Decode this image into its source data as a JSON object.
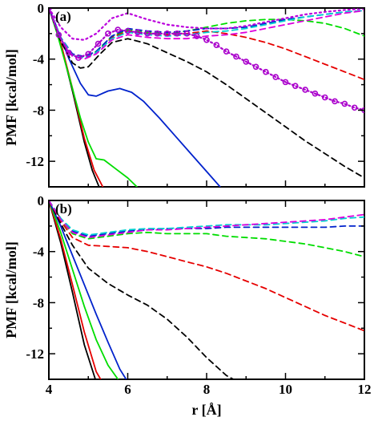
{
  "chart_data": [
    {
      "type": "line",
      "panel_label": "(a)",
      "xlim": [
        4,
        12
      ],
      "ylim": [
        -14,
        0
      ],
      "xticks": [
        4,
        6,
        8,
        10,
        12
      ],
      "xtick_labels": [
        "",
        "",
        "",
        "",
        ""
      ],
      "yticks": [
        0,
        -4,
        -8,
        -12
      ],
      "ytick_labels": [
        "0",
        "-4",
        "-8",
        "-12"
      ],
      "ylabel": "PMF [kcal/mol]",
      "xlabel": "",
      "series": [
        {
          "color": "#000000",
          "dash": "",
          "x": [
            4.0,
            4.3,
            4.6,
            4.9,
            5.1,
            5.3
          ],
          "y": [
            0,
            -2.8,
            -6.5,
            -10.5,
            -12.7,
            -14.2
          ]
        },
        {
          "color": "#e60000",
          "dash": "",
          "x": [
            4.0,
            4.3,
            4.6,
            4.9,
            5.15,
            5.4
          ],
          "y": [
            0,
            -2.7,
            -6.3,
            -10.2,
            -12.7,
            -14.2
          ]
        },
        {
          "color": "#00dd00",
          "dash": "",
          "x": [
            4.0,
            4.2,
            4.5,
            4.8,
            5.0,
            5.2,
            5.4,
            5.7,
            6.0,
            6.3
          ],
          "y": [
            0,
            -1.9,
            -5.2,
            -8.6,
            -10.5,
            -11.8,
            -11.9,
            -12.6,
            -13.3,
            -14.2
          ]
        },
        {
          "color": "#0022cc",
          "dash": "",
          "x": [
            4.0,
            4.2,
            4.5,
            4.8,
            5.0,
            5.2,
            5.5,
            5.8,
            6.1,
            6.4,
            6.8,
            7.2,
            7.6,
            8.0,
            8.4
          ],
          "y": [
            0,
            -1.5,
            -3.9,
            -5.9,
            -6.8,
            -6.9,
            -6.5,
            -6.3,
            -6.6,
            -7.3,
            -8.6,
            -10.0,
            -11.4,
            -12.8,
            -14.2
          ]
        },
        {
          "color": "#000000",
          "dash": "7,5",
          "x": [
            4.0,
            4.3,
            4.6,
            4.8,
            5.0,
            5.3,
            5.6,
            6.0,
            6.5,
            7.0,
            7.5,
            8.0,
            8.5,
            9.0,
            9.5,
            10.0,
            10.5,
            11.0,
            11.5,
            12.0
          ],
          "y": [
            0,
            -2.6,
            -4.3,
            -4.7,
            -4.6,
            -3.6,
            -2.7,
            -2.4,
            -2.8,
            -3.5,
            -4.2,
            -5.0,
            -6.0,
            -7.1,
            -8.2,
            -9.3,
            -10.4,
            -11.4,
            -12.4,
            -13.3
          ]
        },
        {
          "color": "#e60000",
          "dash": "7,5",
          "x": [
            4.0,
            4.3,
            4.6,
            4.9,
            5.2,
            5.6,
            6.0,
            6.5,
            7.0,
            7.5,
            8.0,
            8.5,
            9.0,
            9.5,
            10.0,
            10.5,
            11.0,
            11.5,
            12.0
          ],
          "y": [
            0,
            -2.3,
            -3.7,
            -3.9,
            -3.5,
            -2.3,
            -1.8,
            -2.0,
            -2.1,
            -2.0,
            -1.8,
            -2.0,
            -2.3,
            -2.7,
            -3.2,
            -3.8,
            -4.4,
            -5.0,
            -5.6
          ]
        },
        {
          "color": "#00dd00",
          "dash": "7,5",
          "x": [
            4.0,
            4.3,
            4.6,
            4.9,
            5.2,
            5.6,
            6.0,
            6.5,
            7.0,
            7.5,
            8.0,
            8.5,
            9.0,
            9.5,
            10.0,
            10.5,
            11.0,
            11.5,
            12.0
          ],
          "y": [
            0,
            -2.3,
            -3.7,
            -3.8,
            -3.4,
            -2.2,
            -1.7,
            -1.9,
            -2.0,
            -1.8,
            -1.5,
            -1.2,
            -1.0,
            -0.9,
            -0.9,
            -1.0,
            -1.2,
            -1.6,
            -2.2
          ]
        },
        {
          "color": "#0022cc",
          "dash": "7,5",
          "x": [
            4.0,
            4.3,
            4.6,
            4.9,
            5.2,
            5.6,
            6.0,
            6.5,
            7.0,
            7.5,
            8.0,
            8.5,
            9.0,
            9.5,
            10.0,
            10.5,
            11.0,
            11.5,
            12.0
          ],
          "y": [
            0,
            -2.3,
            -3.6,
            -3.8,
            -3.4,
            -2.2,
            -1.6,
            -1.8,
            -1.9,
            -1.8,
            -1.6,
            -1.6,
            -1.5,
            -1.2,
            -0.9,
            -0.7,
            -0.5,
            -0.3,
            -0.2
          ]
        },
        {
          "color": "#00d0d0",
          "dash": "7,5",
          "x": [
            4.0,
            4.3,
            4.6,
            4.9,
            5.2,
            5.6,
            6.0,
            6.5,
            7.0,
            7.5,
            8.0,
            8.5,
            9.0,
            9.5,
            10.0,
            10.5,
            11.0,
            11.5,
            12.0
          ],
          "y": [
            0,
            -2.3,
            -3.7,
            -3.9,
            -3.5,
            -2.4,
            -1.9,
            -2.1,
            -2.2,
            -2.1,
            -1.9,
            -1.8,
            -1.6,
            -1.3,
            -1.0,
            -0.7,
            -0.5,
            -0.3,
            -0.2
          ]
        },
        {
          "color": "#dd00dd",
          "dash": "7,5",
          "x": [
            4.0,
            4.3,
            4.6,
            4.9,
            5.2,
            5.6,
            6.0,
            6.5,
            7.0,
            7.5,
            8.0,
            8.5,
            9.0,
            9.5,
            10.0,
            10.5,
            11.0,
            11.5,
            12.0
          ],
          "y": [
            0,
            -2.4,
            -3.8,
            -4.0,
            -3.6,
            -2.5,
            -2.1,
            -2.3,
            -2.4,
            -2.4,
            -2.2,
            -2.1,
            -1.9,
            -1.6,
            -1.3,
            -1.0,
            -0.7,
            -0.4,
            -0.2
          ]
        },
        {
          "color": "#bb00dd",
          "dash": "2,4",
          "x": [
            4.0,
            4.3,
            4.6,
            4.9,
            5.2,
            5.6,
            6.0,
            6.5,
            7.0,
            7.5,
            8.0,
            8.5,
            9.0,
            9.5,
            10.0,
            10.5,
            11.0,
            11.5,
            12.0
          ],
          "y": [
            0,
            -1.5,
            -2.4,
            -2.5,
            -2.0,
            -0.8,
            -0.4,
            -0.9,
            -1.3,
            -1.5,
            -1.6,
            -1.6,
            -1.4,
            -1.1,
            -0.8,
            -0.5,
            -0.3,
            -0.15,
            -0.05
          ]
        },
        {
          "color": "#aa00cc",
          "dash": "2,3",
          "marker": "circle",
          "x": [
            4.0,
            4.25,
            4.5,
            4.75,
            5.0,
            5.25,
            5.5,
            5.75,
            6.0,
            6.25,
            6.5,
            6.75,
            7.0,
            7.25,
            7.5,
            7.75,
            8.0,
            8.25,
            8.5,
            8.75,
            9.0,
            9.25,
            9.5,
            9.75,
            10.0,
            10.25,
            10.5,
            10.75,
            11.0,
            11.25,
            11.5,
            11.75,
            12.0
          ],
          "y": [
            0,
            -2.1,
            -3.5,
            -3.9,
            -3.6,
            -2.8,
            -2.0,
            -1.7,
            -1.8,
            -1.9,
            -2.0,
            -2.0,
            -2.0,
            -2.0,
            -2.0,
            -2.2,
            -2.5,
            -2.9,
            -3.4,
            -3.8,
            -4.2,
            -4.6,
            -5.0,
            -5.4,
            -5.8,
            -6.1,
            -6.4,
            -6.7,
            -7.0,
            -7.3,
            -7.5,
            -7.8,
            -8.0
          ]
        }
      ]
    },
    {
      "type": "line",
      "panel_label": "(b)",
      "xlim": [
        4,
        12
      ],
      "ylim": [
        -14,
        0
      ],
      "xticks": [
        4,
        6,
        8,
        10,
        12
      ],
      "xtick_labels": [
        "4",
        "6",
        "8",
        "10",
        "12"
      ],
      "yticks": [
        0,
        -4,
        -8,
        -12
      ],
      "ytick_labels": [
        "0",
        "-4",
        "-8",
        "-12"
      ],
      "ylabel": "PMF [kcal/mol]",
      "xlabel": "r  [Å]",
      "series": [
        {
          "color": "#000000",
          "dash": "",
          "x": [
            4.0,
            4.3,
            4.6,
            4.9,
            5.2
          ],
          "y": [
            0,
            -3.3,
            -7.2,
            -11.3,
            -14.2
          ]
        },
        {
          "color": "#e60000",
          "dash": "",
          "x": [
            4.0,
            4.3,
            4.6,
            4.9,
            5.2,
            5.35
          ],
          "y": [
            0,
            -3.0,
            -6.6,
            -10.3,
            -13.4,
            -14.2
          ]
        },
        {
          "color": "#00dd00",
          "dash": "",
          "x": [
            4.0,
            4.3,
            4.6,
            4.9,
            5.2,
            5.5,
            5.8
          ],
          "y": [
            0,
            -2.5,
            -5.4,
            -8.3,
            -10.9,
            -12.9,
            -14.2
          ]
        },
        {
          "color": "#0022cc",
          "dash": "",
          "x": [
            4.0,
            4.3,
            4.6,
            4.9,
            5.2,
            5.5,
            5.8,
            6.0
          ],
          "y": [
            0,
            -2.0,
            -4.3,
            -6.6,
            -8.9,
            -11.1,
            -13.2,
            -14.2
          ]
        },
        {
          "color": "#000000",
          "dash": "7,5",
          "x": [
            4.0,
            4.3,
            4.6,
            5.0,
            5.5,
            6.0,
            6.5,
            7.0,
            7.5,
            8.0,
            8.5,
            8.8
          ],
          "y": [
            0,
            -1.8,
            -3.5,
            -5.3,
            -6.5,
            -7.4,
            -8.2,
            -9.3,
            -10.7,
            -12.3,
            -13.7,
            -14.2
          ]
        },
        {
          "color": "#e60000",
          "dash": "7,5",
          "x": [
            4.0,
            4.3,
            4.6,
            5.0,
            5.5,
            6.0,
            6.5,
            7.0,
            7.5,
            8.0,
            8.5,
            9.0,
            9.5,
            10.0,
            10.5,
            11.0,
            11.5,
            12.0
          ],
          "y": [
            0,
            -1.6,
            -2.9,
            -3.5,
            -3.6,
            -3.7,
            -4.0,
            -4.4,
            -4.8,
            -5.2,
            -5.7,
            -6.3,
            -6.9,
            -7.6,
            -8.3,
            -9.0,
            -9.6,
            -10.2
          ]
        },
        {
          "color": "#00dd00",
          "dash": "7,5",
          "x": [
            4.0,
            4.3,
            4.6,
            5.0,
            5.5,
            6.0,
            6.5,
            7.0,
            7.5,
            8.0,
            8.5,
            9.0,
            9.5,
            10.0,
            10.5,
            11.0,
            11.5,
            12.0
          ],
          "y": [
            0,
            -1.5,
            -2.6,
            -3.0,
            -2.8,
            -2.6,
            -2.5,
            -2.6,
            -2.6,
            -2.6,
            -2.8,
            -2.9,
            -3.0,
            -3.2,
            -3.4,
            -3.7,
            -4.0,
            -4.4
          ]
        },
        {
          "color": "#0022cc",
          "dash": "7,5",
          "x": [
            4.0,
            4.3,
            4.6,
            5.0,
            5.5,
            6.0,
            6.5,
            7.0,
            7.5,
            8.0,
            8.5,
            9.0,
            9.5,
            10.0,
            10.5,
            11.0,
            11.5,
            12.0
          ],
          "y": [
            0,
            -1.4,
            -2.4,
            -2.8,
            -2.6,
            -2.4,
            -2.3,
            -2.2,
            -2.2,
            -2.2,
            -2.1,
            -2.1,
            -2.1,
            -2.1,
            -2.1,
            -2.1,
            -2.0,
            -2.0
          ]
        },
        {
          "color": "#00d0d0",
          "dash": "7,5",
          "x": [
            4.0,
            4.3,
            4.6,
            5.0,
            5.5,
            6.0,
            6.5,
            7.0,
            7.5,
            8.0,
            8.5,
            9.0,
            9.5,
            10.0,
            10.5,
            11.0,
            11.5,
            12.0
          ],
          "y": [
            0,
            -1.4,
            -2.3,
            -2.7,
            -2.5,
            -2.3,
            -2.2,
            -2.2,
            -2.1,
            -2.0,
            -1.9,
            -1.9,
            -1.9,
            -1.8,
            -1.7,
            -1.6,
            -1.4,
            -1.3
          ]
        },
        {
          "color": "#dd00dd",
          "dash": "7,5",
          "x": [
            4.0,
            4.3,
            4.6,
            5.0,
            5.5,
            6.0,
            6.5,
            7.0,
            7.5,
            8.0,
            8.5,
            9.0,
            9.5,
            10.0,
            10.5,
            11.0,
            11.5,
            12.0
          ],
          "y": [
            0,
            -1.5,
            -2.5,
            -2.9,
            -2.7,
            -2.5,
            -2.3,
            -2.3,
            -2.2,
            -2.1,
            -2.0,
            -1.9,
            -1.8,
            -1.7,
            -1.6,
            -1.5,
            -1.3,
            -1.1
          ]
        }
      ]
    }
  ]
}
